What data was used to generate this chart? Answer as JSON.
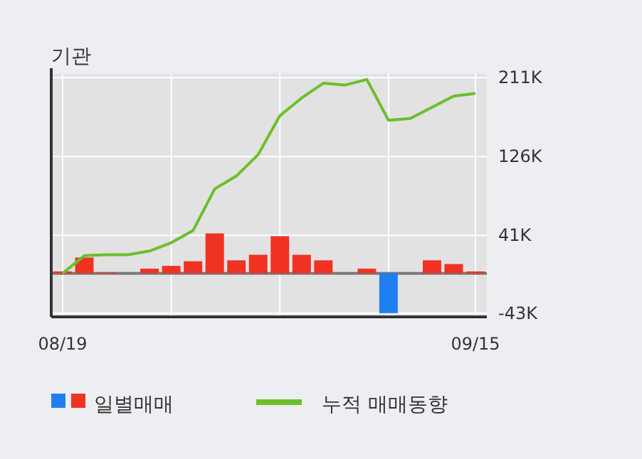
{
  "chart_data": {
    "type": "bar",
    "title": "기관",
    "categories": [
      "08/19",
      null,
      null,
      null,
      null,
      null,
      null,
      null,
      null,
      null,
      null,
      null,
      null,
      null,
      null,
      null,
      null,
      null,
      null,
      "09/15"
    ],
    "series": [
      {
        "name": "일별매매",
        "colors": [
          "#f03222",
          "#f03222",
          "#f03222",
          "#f03222",
          "#f03222",
          "#f03222",
          "#f03222",
          "#f03222",
          "#f03222",
          "#f03222",
          "#f03222",
          "#f03222",
          "#f03222",
          "#f03222",
          "#f03222",
          "#1f7ff0",
          "#f03222",
          "#f03222",
          "#f03222",
          "#f03222"
        ],
        "values": [
          2,
          17,
          1,
          0,
          5,
          8,
          13,
          43,
          14,
          20,
          40,
          20,
          14,
          0,
          5,
          -43,
          0,
          14,
          10,
          2
        ]
      },
      {
        "type": "line",
        "name": "누적 매매동향",
        "color": "#6cbf2a",
        "values": [
          0,
          19,
          20,
          20,
          24,
          33,
          46,
          91,
          105,
          128,
          170,
          189,
          205,
          203,
          209,
          165,
          167,
          179,
          191,
          194
        ]
      }
    ],
    "ylim": [
      -47,
      215
    ],
    "yticks": [
      {
        "value": 211,
        "label": "211K"
      },
      {
        "value": 126,
        "label": "126K"
      },
      {
        "value": 41,
        "label": "41K"
      },
      {
        "value": -43,
        "label": "-43K"
      }
    ],
    "grid": true,
    "legend": "bottom"
  }
}
